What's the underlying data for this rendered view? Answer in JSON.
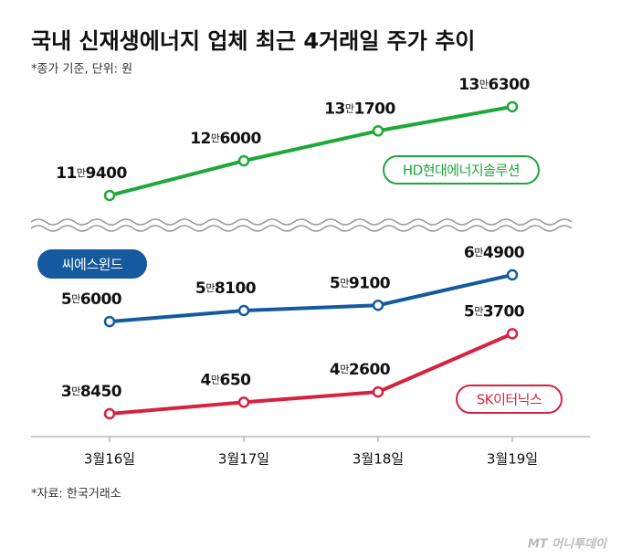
{
  "chart_data": {
    "type": "line",
    "title": "국내 신재생에너지 업체 최근 4거래일 주가 추이",
    "subtitle": "*종가 기준, 단위: 원",
    "source": "*자료: 한국거래소",
    "watermark": "MT 머니투데이",
    "categories": [
      "3월16일",
      "3월17일",
      "3월18일",
      "3월19일"
    ],
    "series": [
      {
        "name": "HD현대에너지솔루션",
        "color": "#1fa83a",
        "axis": "y2",
        "values": [
          119400,
          126000,
          131700,
          136300
        ],
        "value_labels": [
          "11만9400",
          "12만6000",
          "13만1700",
          "13만6300"
        ]
      },
      {
        "name": "씨에스윈드",
        "color": "#155a9e",
        "values": [
          56000,
          58100,
          59100,
          64900
        ],
        "value_labels": [
          "5만6000",
          "5만8100",
          "5만9100",
          "6만4900"
        ]
      },
      {
        "name": "SK이터닉스",
        "color": "#d7223f",
        "values": [
          38450,
          40650,
          42600,
          53700
        ],
        "value_labels": [
          "3만8450",
          "4만650",
          "4만2600",
          "5만3700"
        ]
      }
    ]
  }
}
